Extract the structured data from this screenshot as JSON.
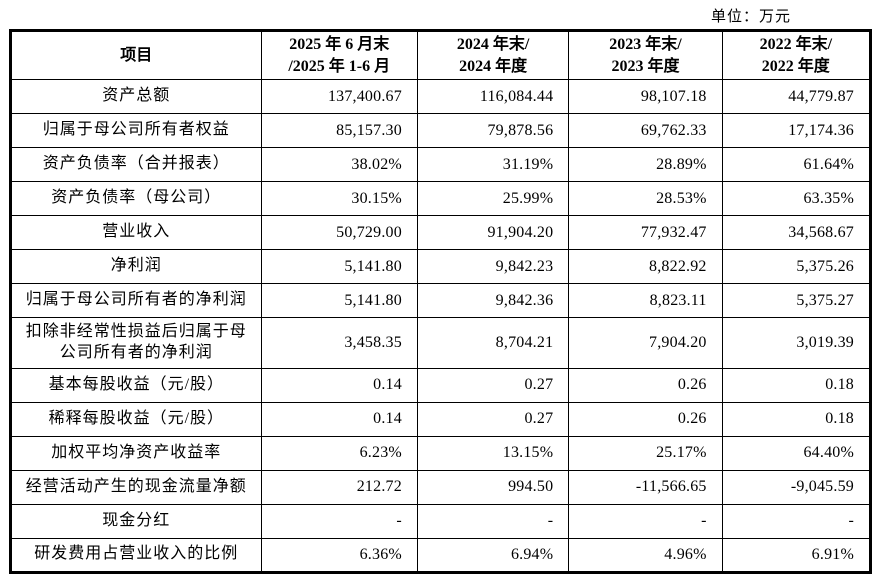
{
  "unit_label": "单位：万元",
  "table": {
    "headers": [
      "项目",
      "2025 年 6 月末\n/2025 年 1-6 月",
      "2024 年末/\n2024 年度",
      "2023 年末/\n2023 年度",
      "2022 年末/\n2022 年度"
    ],
    "rows": [
      {
        "label": "资产总额",
        "values": [
          "137,400.67",
          "116,084.44",
          "98,107.18",
          "44,779.87"
        ]
      },
      {
        "label": "归属于母公司所有者权益",
        "values": [
          "85,157.30",
          "79,878.56",
          "69,762.33",
          "17,174.36"
        ]
      },
      {
        "label": "资产负债率（合并报表）",
        "values": [
          "38.02%",
          "31.19%",
          "28.89%",
          "61.64%"
        ]
      },
      {
        "label": "资产负债率（母公司）",
        "values": [
          "30.15%",
          "25.99%",
          "28.53%",
          "63.35%"
        ]
      },
      {
        "label": "营业收入",
        "values": [
          "50,729.00",
          "91,904.20",
          "77,932.47",
          "34,568.67"
        ]
      },
      {
        "label": "净利润",
        "values": [
          "5,141.80",
          "9,842.23",
          "8,822.92",
          "5,375.26"
        ]
      },
      {
        "label": "归属于母公司所有者的净利润",
        "values": [
          "5,141.80",
          "9,842.36",
          "8,823.11",
          "5,375.27"
        ]
      },
      {
        "label": "扣除非经常性损益后归属于母\n公司所有者的净利润",
        "values": [
          "3,458.35",
          "8,704.21",
          "7,904.20",
          "3,019.39"
        ]
      },
      {
        "label": "基本每股收益（元/股）",
        "values": [
          "0.14",
          "0.27",
          "0.26",
          "0.18"
        ]
      },
      {
        "label": "稀释每股收益（元/股）",
        "values": [
          "0.14",
          "0.27",
          "0.26",
          "0.18"
        ]
      },
      {
        "label": "加权平均净资产收益率",
        "values": [
          "6.23%",
          "13.15%",
          "25.17%",
          "64.40%"
        ]
      },
      {
        "label": "经营活动产生的现金流量净额",
        "values": [
          "212.72",
          "994.50",
          "-11,566.65",
          "-9,045.59"
        ]
      },
      {
        "label": "现金分红",
        "values": [
          "-",
          "-",
          "-",
          "-"
        ]
      },
      {
        "label": "研发费用占营业收入的比例",
        "values": [
          "6.36%",
          "6.94%",
          "4.96%",
          "6.91%"
        ]
      }
    ]
  }
}
